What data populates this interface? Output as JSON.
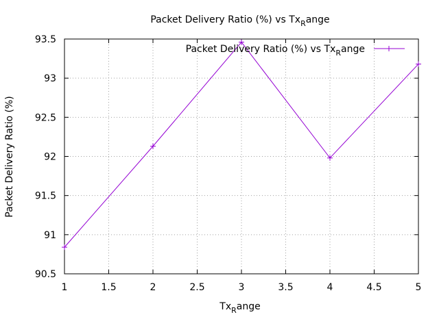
{
  "chart_data": {
    "type": "line",
    "title": {
      "prefix": "Packet Delivery Ratio (%) vs Tx",
      "subscript": "R",
      "suffix": "ange"
    },
    "xlabel": {
      "prefix": "Tx",
      "subscript": "R",
      "suffix": "ange"
    },
    "ylabel": "Packet Delivery Ratio (%)",
    "xlim": [
      1,
      5
    ],
    "ylim": [
      90.5,
      93.5
    ],
    "xticks": [
      1,
      1.5,
      2,
      2.5,
      3,
      3.5,
      4,
      4.5,
      5
    ],
    "xtick_labels": [
      "1",
      "1.5",
      "2",
      "2.5",
      "3",
      "3.5",
      "4",
      "4.5",
      "5"
    ],
    "yticks": [
      90.5,
      91,
      91.5,
      92,
      92.5,
      93,
      93.5
    ],
    "ytick_labels": [
      "90.5",
      "91",
      "91.5",
      "92",
      "92.5",
      "93",
      "93.5"
    ],
    "grid": true,
    "legend_position": "top-right",
    "series": [
      {
        "name": {
          "prefix": "Packet Delivery Ratio (%) vs Tx",
          "subscript": "R",
          "suffix": "ange"
        },
        "color": "#9400D3",
        "marker": "plus",
        "x": [
          1,
          2,
          3,
          4,
          5
        ],
        "y": [
          90.84,
          92.13,
          93.46,
          91.98,
          93.18
        ]
      }
    ]
  }
}
